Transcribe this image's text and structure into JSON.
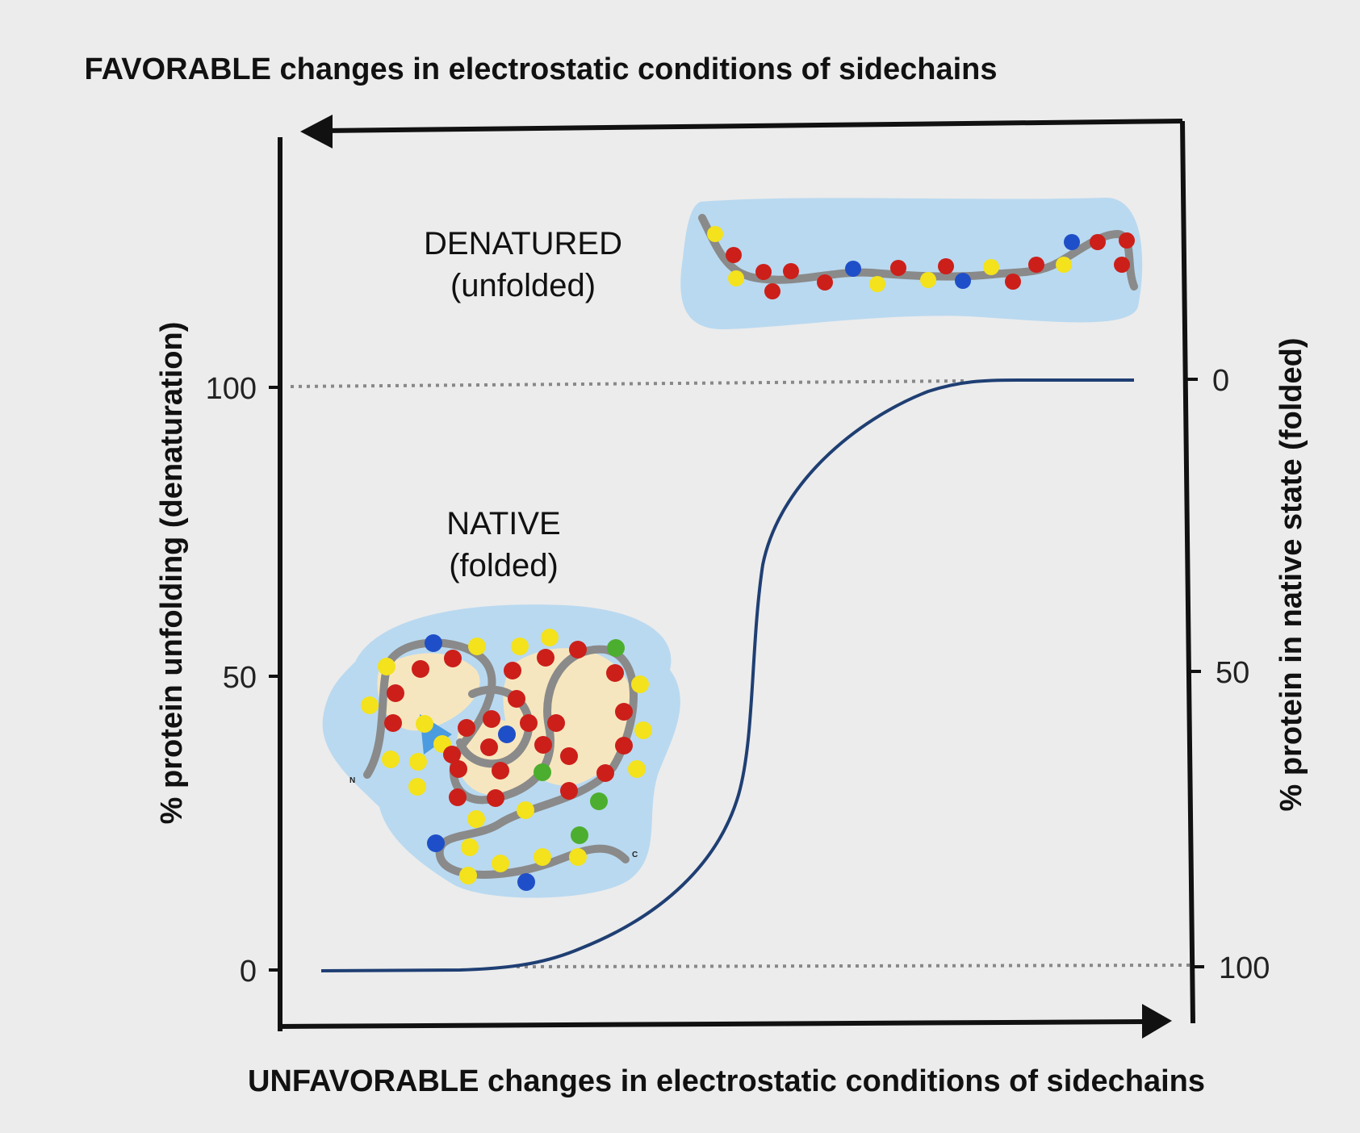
{
  "top_axis_label": "FAVORABLE changes in electrostatic conditions of sidechains",
  "bottom_axis_label": "UNFAVORABLE changes in electrostatic conditions of sidechains",
  "left_axis_label": "% protein unfolding (denaturation)",
  "right_axis_label": "% protein in native state (folded)",
  "left_ticks": [
    "100",
    "50",
    "0"
  ],
  "right_ticks": [
    "0",
    "50",
    "100"
  ],
  "denatured": {
    "title": "DENATURED",
    "subtitle": "(unfolded)"
  },
  "native": {
    "title": "NATIVE",
    "subtitle": "(folded)",
    "n_terminus": "N",
    "c_terminus": "C"
  },
  "colors": {
    "background": "#ececec",
    "curve": "#1f3f73",
    "halo": "#b9d9f0",
    "strand": "#8a8a8a",
    "bead_red": "#cc1f1a",
    "bead_yellow": "#f3e21c",
    "bead_blue": "#1f4fc8",
    "bead_green": "#4cae2e",
    "core": "#f6e6bf"
  }
}
